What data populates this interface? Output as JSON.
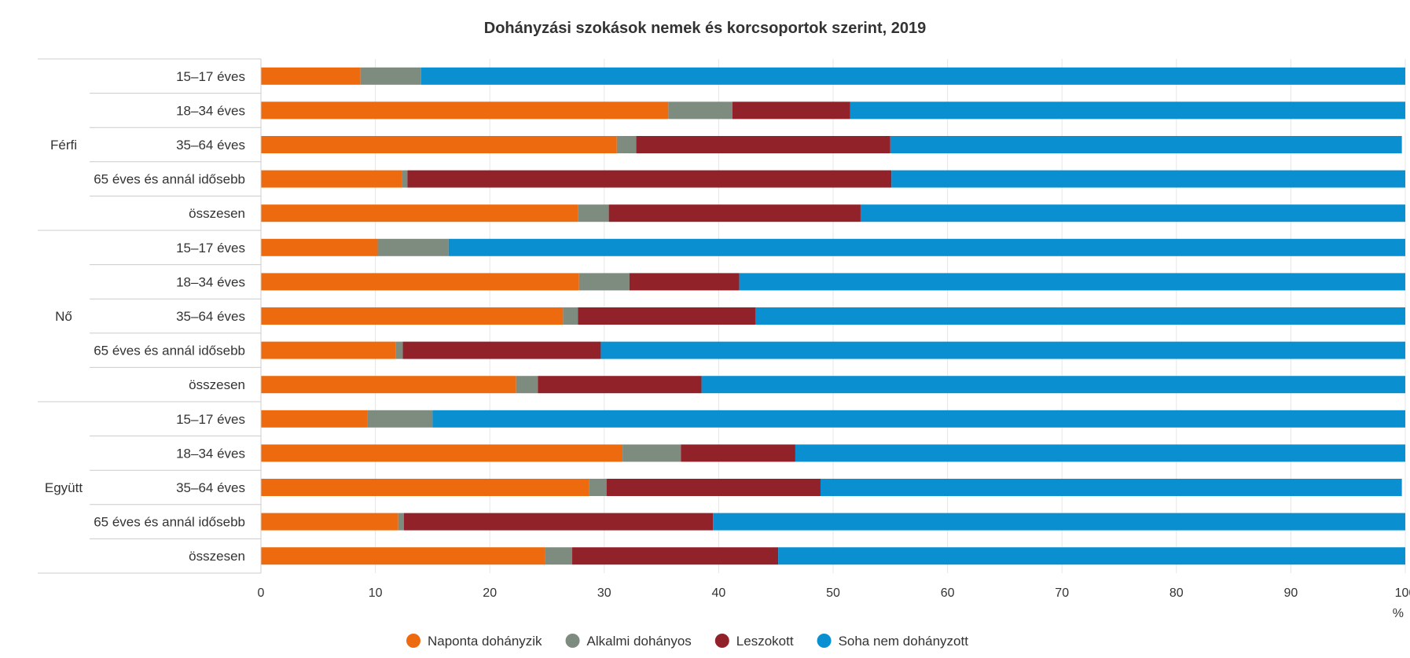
{
  "chart_data": {
    "type": "bar",
    "orientation": "horizontal",
    "stacked": true,
    "title": "Dohányzási szokások nemek és korcsoportok szerint, 2019",
    "x_unit": "%",
    "xlim": [
      0,
      100
    ],
    "x_ticks": [
      "0",
      "10",
      "20",
      "30",
      "40",
      "50",
      "60",
      "70",
      "80",
      "90",
      "100"
    ],
    "grid": true,
    "legend_position": "bottom",
    "groups": [
      {
        "label": "Férfi",
        "categories": [
          "15–17 éves",
          "18–34 éves",
          "35–64 éves",
          "65 éves és annál idősebb",
          "összesen"
        ]
      },
      {
        "label": "Nő",
        "categories": [
          "15–17 éves",
          "18–34 éves",
          "35–64 éves",
          "65 éves és annál idősebb",
          "összesen"
        ]
      },
      {
        "label": "Együtt",
        "categories": [
          "15–17 éves",
          "18–34 éves",
          "35–64 éves",
          "65 éves és annál idősebb",
          "összesen"
        ]
      }
    ],
    "series": [
      {
        "name": "Naponta dohányzik",
        "color": "#ee6a0e",
        "values": [
          8.7,
          35.6,
          31.1,
          12.3,
          27.7,
          10.2,
          27.8,
          26.4,
          11.8,
          22.3,
          9.3,
          31.6,
          28.7,
          12.0,
          24.8
        ]
      },
      {
        "name": "Alkalmi dohányos",
        "color": "#7e8b7f",
        "values": [
          5.3,
          5.6,
          1.7,
          0.5,
          2.7,
          6.2,
          4.4,
          1.3,
          0.6,
          1.9,
          5.7,
          5.1,
          1.5,
          0.5,
          2.4
        ]
      },
      {
        "name": "Leszokott",
        "color": "#92222a",
        "values": [
          0.0,
          10.3,
          22.2,
          42.3,
          22.0,
          0.0,
          9.6,
          15.5,
          17.3,
          14.3,
          0.0,
          10.0,
          18.7,
          27.0,
          18.0
        ]
      },
      {
        "name": "Soha nem dohányzott",
        "color": "#0a8fd1",
        "values": [
          86.0,
          48.5,
          44.7,
          44.9,
          47.6,
          83.6,
          58.2,
          56.8,
          70.3,
          61.5,
          85.0,
          53.3,
          50.8,
          60.5,
          54.8
        ]
      }
    ]
  }
}
